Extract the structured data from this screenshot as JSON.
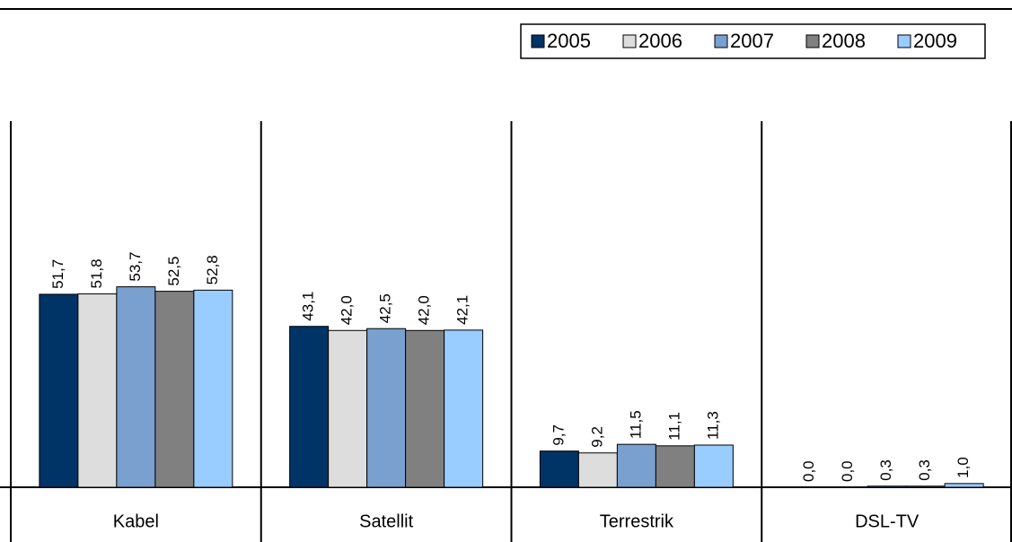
{
  "chart_data": {
    "type": "bar",
    "categories": [
      "Kabel",
      "Satellit",
      "Terrestrik",
      "DSL-TV"
    ],
    "series": [
      {
        "name": "2005",
        "color": "#003366",
        "values": [
          51.7,
          43.1,
          9.7,
          0.0
        ],
        "value_labels": [
          "51,7",
          "43,1",
          "9,7",
          "0,0"
        ]
      },
      {
        "name": "2006",
        "color": "#dddddd",
        "values": [
          51.8,
          42.0,
          9.2,
          0.0
        ],
        "value_labels": [
          "51,8",
          "42,0",
          "9,2",
          "0,0"
        ]
      },
      {
        "name": "2007",
        "color": "#7aa0d0",
        "values": [
          53.7,
          42.5,
          11.5,
          0.3
        ],
        "value_labels": [
          "53,7",
          "42,5",
          "11,5",
          "0,3"
        ]
      },
      {
        "name": "2008",
        "color": "#808080",
        "values": [
          52.5,
          42.0,
          11.1,
          0.3
        ],
        "value_labels": [
          "52,5",
          "42,0",
          "11,1",
          "0,3"
        ]
      },
      {
        "name": "2009",
        "color": "#99ccff",
        "values": [
          52.8,
          42.1,
          11.3,
          1.0
        ],
        "value_labels": [
          "52,8",
          "42,1",
          "11,3",
          "1,0"
        ]
      }
    ],
    "ylim": [
      0,
      100
    ]
  }
}
